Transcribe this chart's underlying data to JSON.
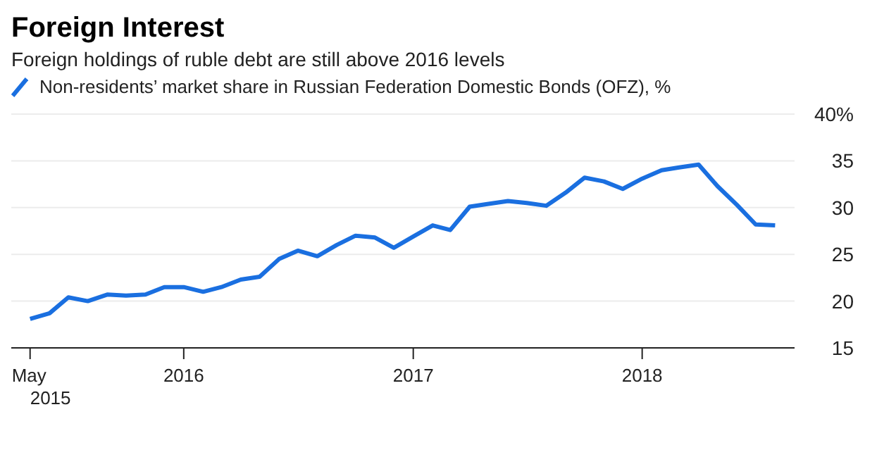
{
  "chart_data": {
    "type": "line",
    "title": "Foreign Interest",
    "subtitle": "Foreign holdings of ruble debt are still above 2016 levels",
    "x": [
      "2015-05",
      "2015-06",
      "2015-07",
      "2015-08",
      "2015-09",
      "2015-10",
      "2015-11",
      "2015-12",
      "2016-01",
      "2016-02",
      "2016-03",
      "2016-04",
      "2016-05",
      "2016-06",
      "2016-07",
      "2016-08",
      "2016-09",
      "2016-10",
      "2016-11",
      "2016-12",
      "2017-01",
      "2017-02",
      "2017-03",
      "2017-04",
      "2017-05",
      "2017-06",
      "2017-07",
      "2017-08",
      "2017-09",
      "2017-10",
      "2017-11",
      "2017-12",
      "2018-01",
      "2018-02",
      "2018-03",
      "2018-04",
      "2018-05",
      "2018-06",
      "2018-07",
      "2018-08"
    ],
    "series": [
      {
        "name": "Non-residents’ market share in Russian Federation Domestic Bonds (OFZ), %",
        "color": "#1a6fe0",
        "values": [
          18.1,
          18.7,
          20.4,
          20.0,
          20.7,
          20.6,
          20.7,
          21.5,
          21.5,
          21.0,
          21.5,
          22.3,
          22.6,
          24.5,
          25.4,
          24.8,
          26.0,
          27.0,
          26.8,
          25.7,
          26.9,
          28.1,
          27.6,
          30.1,
          30.4,
          30.7,
          30.5,
          30.2,
          31.6,
          33.2,
          32.8,
          32.0,
          33.1,
          34.0,
          34.3,
          34.6,
          32.3,
          30.3,
          28.2,
          28.1
        ]
      }
    ],
    "xlim": [
      "2015-04",
      "2018-09"
    ],
    "xticks": [
      {
        "value": "2015-05",
        "label": "May 2015"
      },
      {
        "value": "2016-01",
        "label": "2016"
      },
      {
        "value": "2017-01",
        "label": "2017"
      },
      {
        "value": "2018-01",
        "label": "2018"
      }
    ],
    "ylim": [
      15,
      40
    ],
    "yticks": [
      15,
      20,
      25,
      30,
      35,
      {
        "value": 40,
        "label": "40%"
      }
    ],
    "grid": "y",
    "legend": "top left",
    "marker": "none",
    "line_style": "solid"
  }
}
